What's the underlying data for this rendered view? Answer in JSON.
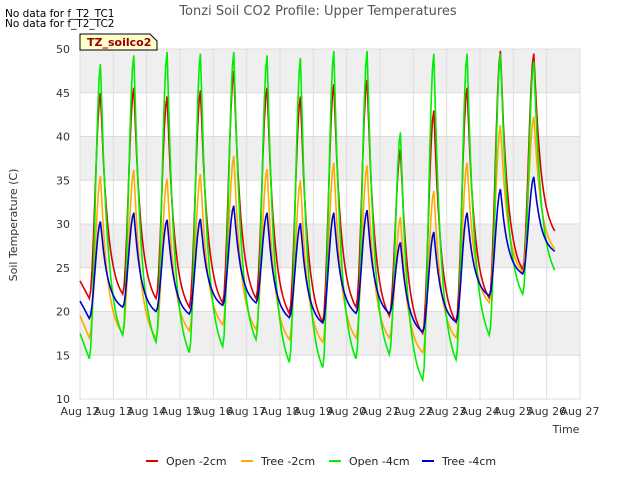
{
  "notes": [
    "No data for f_T2_TC1",
    "No data for f_T2_TC2"
  ],
  "chart_data": {
    "type": "line",
    "title": "Tonzi Soil CO2 Profile: Upper Temperatures",
    "xlabel": "Time",
    "ylabel": "Soil Temperature (C)",
    "ylim": [
      10,
      50
    ],
    "yticks": [
      10,
      15,
      20,
      25,
      30,
      35,
      40,
      45,
      50
    ],
    "xlim": [
      0,
      15
    ],
    "xticks": [
      {
        "x": 0,
        "label": "Aug 12"
      },
      {
        "x": 1,
        "label": "Aug 13"
      },
      {
        "x": 2,
        "label": "Aug 14"
      },
      {
        "x": 3,
        "label": "Aug 15"
      },
      {
        "x": 4,
        "label": "Aug 16"
      },
      {
        "x": 5,
        "label": "Aug 17"
      },
      {
        "x": 6,
        "label": "Aug 18"
      },
      {
        "x": 7,
        "label": "Aug 19"
      },
      {
        "x": 8,
        "label": "Aug 20"
      },
      {
        "x": 9,
        "label": "Aug 21"
      },
      {
        "x": 10,
        "label": "Aug 22"
      },
      {
        "x": 11,
        "label": "Aug 23"
      },
      {
        "x": 12,
        "label": "Aug 24"
      },
      {
        "x": 13,
        "label": "Aug 25"
      },
      {
        "x": 14,
        "label": "Aug 26"
      },
      {
        "x": 15,
        "label": "Aug 27"
      }
    ],
    "grid": true,
    "legend_position": "bottom",
    "badge": "TZ_soilco2",
    "series": [
      {
        "name": "Open -2cm",
        "color": "#dd0000",
        "mins": [
          21.5,
          22.0,
          21.5,
          20.5,
          21.0,
          21.5,
          19.8,
          18.8,
          20.5,
          19.5,
          17.5,
          18.8,
          21.5,
          24.8
        ],
        "maxs": [
          45.0,
          45.6,
          44.6,
          45.3,
          47.5,
          45.6,
          44.6,
          46.0,
          46.5,
          38.5,
          43.0,
          45.6,
          49.8,
          49.5
        ],
        "start": 23.5,
        "end": 29.0
      },
      {
        "name": "Tree -2cm",
        "color": "#ffaa00",
        "mins": [
          17.0,
          17.5,
          17.0,
          17.8,
          18.5,
          18.0,
          16.8,
          16.5,
          17.0,
          17.0,
          15.3,
          17.0,
          21.0,
          24.5
        ],
        "maxs": [
          35.5,
          36.2,
          35.2,
          35.7,
          37.8,
          36.3,
          35.0,
          37.0,
          36.7,
          30.8,
          33.8,
          37.0,
          41.3,
          42.3
        ],
        "start": 19.5,
        "end": 27.0
      },
      {
        "name": "Open -4cm",
        "color": "#00ee00",
        "mins": [
          14.6,
          17.3,
          16.5,
          15.3,
          16.0,
          16.8,
          14.2,
          13.6,
          14.6,
          15.1,
          12.2,
          14.5,
          17.3,
          22.0
        ],
        "maxs": [
          48.3,
          49.3,
          49.7,
          49.5,
          49.7,
          49.3,
          49.0,
          49.8,
          49.8,
          40.5,
          49.5,
          49.5,
          49.5,
          48.6
        ],
        "start": 17.5,
        "end": 24.5
      },
      {
        "name": "Tree -4cm",
        "color": "#0000cc",
        "mins": [
          19.2,
          20.5,
          20.0,
          19.7,
          20.7,
          21.0,
          19.3,
          18.7,
          19.8,
          19.8,
          17.7,
          18.8,
          21.8,
          24.3
        ],
        "maxs": [
          30.3,
          31.3,
          30.5,
          30.6,
          32.1,
          31.3,
          30.1,
          31.3,
          31.6,
          27.9,
          29.1,
          31.3,
          34.0,
          35.4
        ],
        "start": 21.2,
        "end": 26.8
      }
    ]
  }
}
